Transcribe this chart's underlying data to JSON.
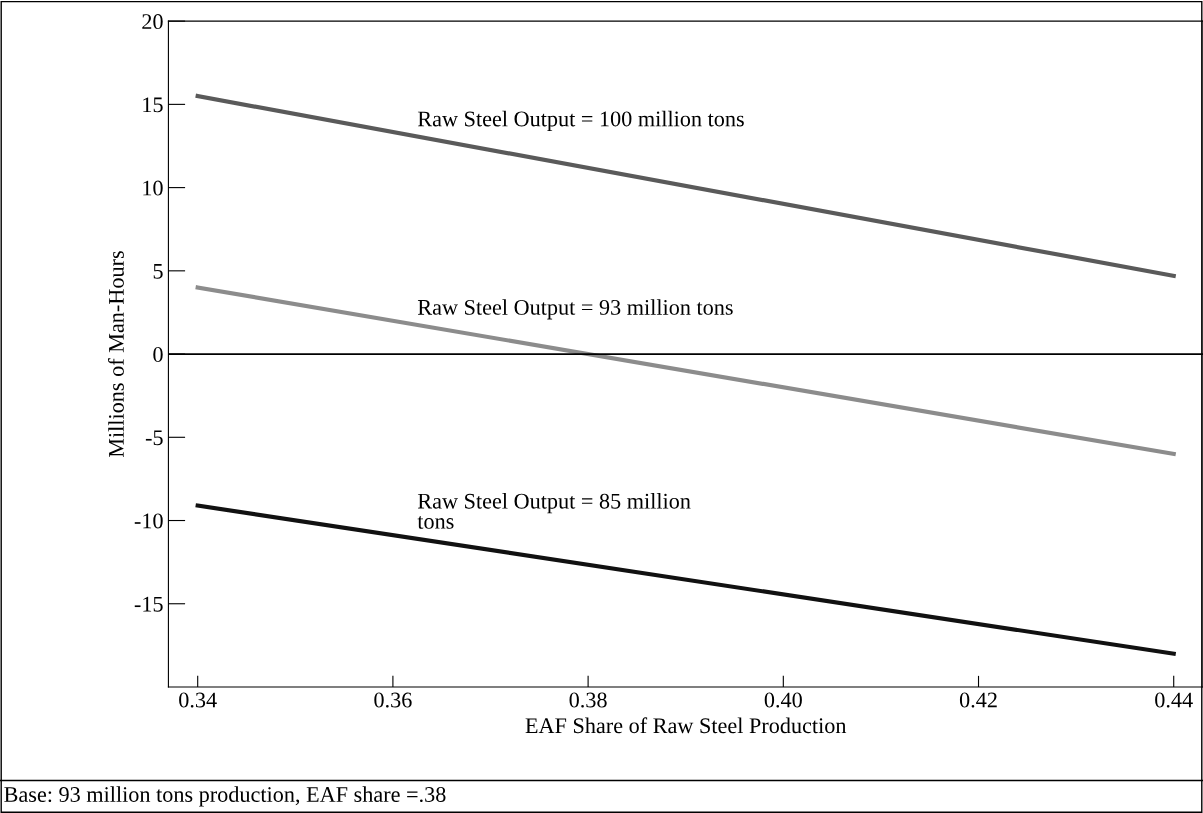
{
  "chart_data": {
    "type": "line",
    "xlabel": "EAF Share of Raw Steel Production",
    "ylabel": "Millions of Man-Hours",
    "x": [
      0.34,
      0.44
    ],
    "series": [
      {
        "name": "Raw Steel Output = 100 million tons",
        "color": "#5a5a5a",
        "values": [
          15.5,
          4.7
        ]
      },
      {
        "name": "Raw Steel Output = 93 million tons",
        "color": "#8c8c8c",
        "values": [
          4.0,
          -6.0
        ]
      },
      {
        "name": "Raw Steel Output = 85 million\ntons",
        "color": "#111111",
        "values": [
          -9.1,
          -18.0
        ]
      }
    ],
    "xlim": [
      0.337,
      0.443
    ],
    "xticks": [
      {
        "value": 0.34,
        "label": "0.34"
      },
      {
        "value": 0.36,
        "label": "0.36"
      },
      {
        "value": 0.38,
        "label": "0.38"
      },
      {
        "value": 0.4,
        "label": "0.40"
      },
      {
        "value": 0.42,
        "label": "0.42"
      },
      {
        "value": 0.44,
        "label": "0.44"
      }
    ],
    "ylim": [
      -20,
      20
    ],
    "yticks": [
      -15,
      -10,
      -5,
      0,
      5,
      10,
      15,
      20
    ],
    "ref_lines": [
      {
        "axis": "y",
        "value": 0,
        "color": "#000000"
      }
    ],
    "annotations": [
      "Base: 93 million tons production, EAF share =.38"
    ],
    "grid": false,
    "legend": false,
    "marker": "none",
    "line_style": "solid"
  }
}
